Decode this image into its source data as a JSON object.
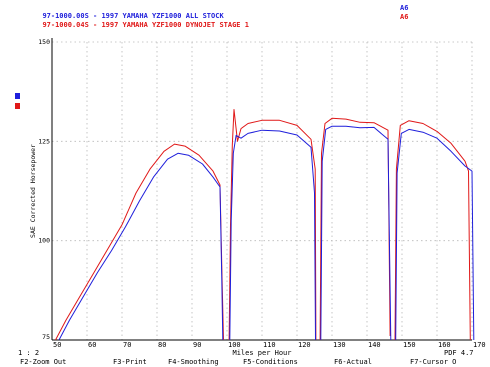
{
  "header": {
    "lines": [
      {
        "text": "97-1000.00S - 1997 YAMAHA YZF1000 ALL STOCK",
        "tag": "A6",
        "color": "#1f1fdb"
      },
      {
        "text": "97-1000.04S - 1997 YAMAHA YZF1000 DYNOJET STAGE 1",
        "tag": "A6",
        "color": "#e01818"
      }
    ]
  },
  "footer": {
    "scale_note": "1 : 2",
    "pdf_label": "PDF 4.7",
    "fkeys": [
      "F2-Zoom Out",
      "F3-Print",
      "F4-Smoothing",
      "F5-Conditions",
      "F6-Actual",
      "F7-Cursor O"
    ]
  },
  "chart_data": {
    "type": "line",
    "ylabel": "SAE Corrected Horsepower",
    "xlabel": "Miles per Hour",
    "xlim": [
      50,
      170
    ],
    "ylim": [
      75,
      150
    ],
    "x_ticks": [
      50,
      60,
      70,
      80,
      90,
      100,
      110,
      120,
      130,
      140,
      150,
      160,
      170
    ],
    "y_ticks": [
      75,
      100,
      125,
      150
    ],
    "grid": true,
    "series": [
      {
        "name": "97-1000.04S - 1997 YAMAHA YZF1000 DYNOJET STAGE 1",
        "color": "#e01818",
        "segments": [
          [
            [
              51,
              75
            ],
            [
              54,
              80
            ],
            [
              58,
              86
            ],
            [
              62,
              92
            ],
            [
              66,
              98
            ],
            [
              70,
              104
            ],
            [
              74,
              112
            ],
            [
              78,
              118
            ],
            [
              82,
              122.5
            ],
            [
              85,
              124.3
            ],
            [
              88,
              123.8
            ],
            [
              92,
              121.5
            ],
            [
              96,
              117.5
            ],
            [
              98,
              114
            ],
            [
              98.6,
              90
            ],
            [
              99,
              75
            ]
          ],
          [
            [
              100.6,
              75
            ],
            [
              101,
              104
            ],
            [
              101.5,
              124
            ],
            [
              102,
              133
            ],
            [
              103,
              125
            ],
            [
              104,
              128.2
            ],
            [
              106,
              129.5
            ],
            [
              110,
              130.3
            ],
            [
              115,
              130.3
            ],
            [
              120,
              129
            ],
            [
              124,
              125.5
            ],
            [
              125.2,
              118
            ],
            [
              125.4,
              75
            ]
          ],
          [
            [
              126.6,
              75
            ],
            [
              127,
              122
            ],
            [
              128,
              129.5
            ],
            [
              130,
              130.8
            ],
            [
              134,
              130.6
            ],
            [
              138,
              129.8
            ],
            [
              142,
              129.7
            ],
            [
              146,
              127.8
            ],
            [
              146.6,
              76
            ]
          ],
          [
            [
              148,
              75
            ],
            [
              148.4,
              118
            ],
            [
              149.5,
              129
            ],
            [
              152,
              130.2
            ],
            [
              156,
              129.5
            ],
            [
              160,
              127.5
            ],
            [
              164,
              124.5
            ],
            [
              168,
              120
            ],
            [
              169,
              117.5
            ],
            [
              169.5,
              75
            ]
          ]
        ]
      },
      {
        "name": "97-1000.00S - 1997 YAMAHA YZF1000 ALL STOCK",
        "color": "#1f1fdb",
        "segments": [
          [
            [
              52,
              75
            ],
            [
              55,
              80
            ],
            [
              59,
              86
            ],
            [
              63,
              92
            ],
            [
              67,
              97.5
            ],
            [
              71,
              103.5
            ],
            [
              75,
              110
            ],
            [
              79,
              116
            ],
            [
              83,
              120.5
            ],
            [
              86,
              122
            ],
            [
              89,
              121.5
            ],
            [
              93,
              119.3
            ],
            [
              96,
              116
            ],
            [
              98,
              113.5
            ],
            [
              98.5,
              90
            ],
            [
              98.8,
              75
            ]
          ],
          [
            [
              100.8,
              75
            ],
            [
              101.2,
              105
            ],
            [
              101.8,
              122
            ],
            [
              102.6,
              126.5
            ],
            [
              104,
              125.8
            ],
            [
              106,
              127
            ],
            [
              110,
              127.8
            ],
            [
              115,
              127.6
            ],
            [
              120,
              126.6
            ],
            [
              124,
              123.5
            ],
            [
              125,
              112
            ],
            [
              125.3,
              75
            ]
          ],
          [
            [
              126.8,
              75
            ],
            [
              127.2,
              120
            ],
            [
              128.2,
              128
            ],
            [
              130,
              128.8
            ],
            [
              134,
              128.8
            ],
            [
              138,
              128.4
            ],
            [
              142,
              128.5
            ],
            [
              146,
              125.5
            ],
            [
              146.8,
              75
            ]
          ],
          [
            [
              148.2,
              75
            ],
            [
              148.6,
              117
            ],
            [
              149.8,
              127
            ],
            [
              152,
              128
            ],
            [
              156,
              127.3
            ],
            [
              160,
              125.8
            ],
            [
              164,
              122.5
            ],
            [
              168,
              118.8
            ],
            [
              170,
              117.5
            ],
            [
              170.5,
              75
            ]
          ]
        ]
      }
    ]
  }
}
